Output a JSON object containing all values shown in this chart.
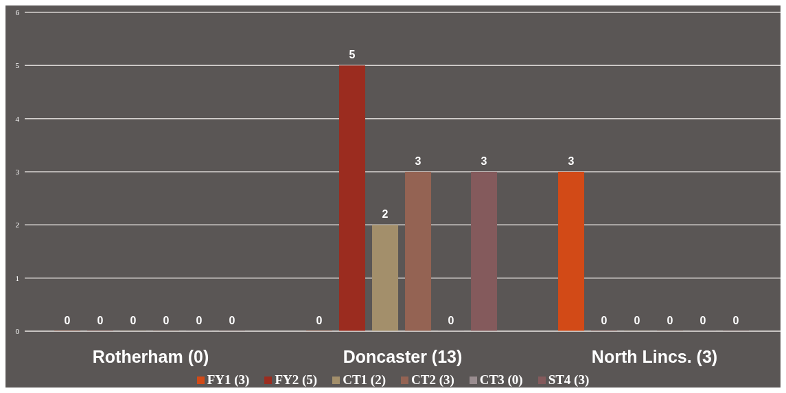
{
  "chart_data": {
    "type": "bar",
    "categories": [
      "Rotherham (0)",
      "Doncaster (13)",
      "North Lincs. (3)"
    ],
    "series": [
      {
        "name": "FY1 (3)",
        "color": "#d24a17",
        "values": [
          0,
          0,
          3
        ]
      },
      {
        "name": "FY2 (5)",
        "color": "#9b2c1f",
        "values": [
          0,
          5,
          0
        ]
      },
      {
        "name": "CT1 (2)",
        "color": "#a38f6b",
        "values": [
          0,
          2,
          0
        ]
      },
      {
        "name": "CT2 (3)",
        "color": "#946353",
        "values": [
          0,
          3,
          0
        ]
      },
      {
        "name": "CT3 (0)",
        "color": "#9a8d90",
        "values": [
          0,
          0,
          0
        ]
      },
      {
        "name": "ST4 (3)",
        "color": "#845a5c",
        "values": [
          0,
          3,
          0
        ]
      }
    ],
    "ylim": [
      0,
      6
    ],
    "yticks": [
      0,
      1,
      2,
      3,
      4,
      5,
      6
    ],
    "grid": "y",
    "legend": "bottom",
    "data_labels": true
  }
}
